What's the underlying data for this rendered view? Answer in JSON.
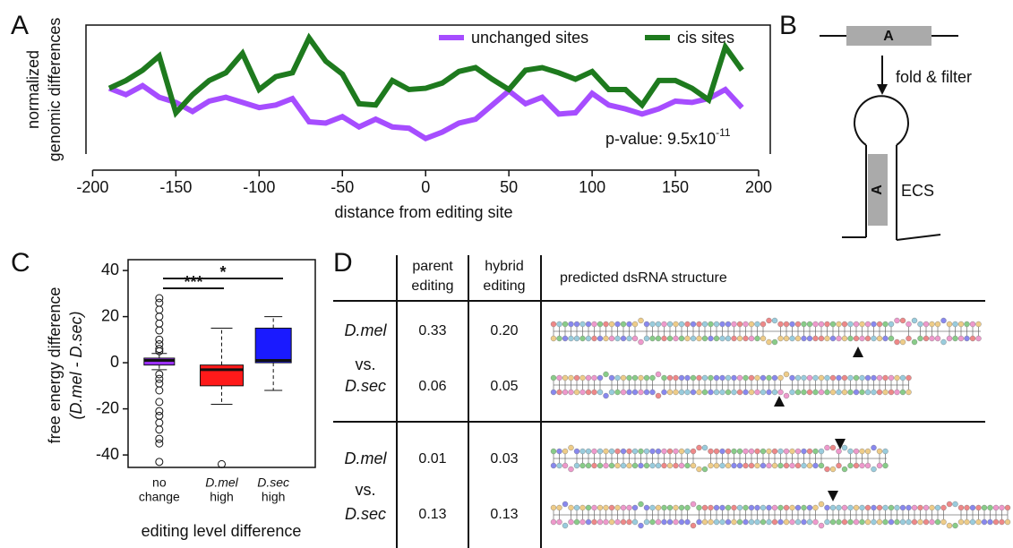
{
  "panel_labels": [
    "A",
    "B",
    "C",
    "D"
  ],
  "chart_data": [
    {
      "type": "line",
      "ylabel": [
        "normalized",
        "genomic differences"
      ],
      "xlabel": "distance from editing site",
      "x": [
        -190,
        -180,
        -170,
        -160,
        -150,
        -140,
        -130,
        -120,
        -110,
        -100,
        -90,
        -80,
        -70,
        -60,
        -50,
        -40,
        -30,
        -20,
        -10,
        0,
        10,
        20,
        30,
        40,
        50,
        60,
        70,
        80,
        90,
        100,
        110,
        120,
        130,
        140,
        150,
        160,
        170,
        180,
        190
      ],
      "series": [
        {
          "name": "unchanged sites",
          "color": "#a64dff",
          "values": [
            51,
            46,
            53,
            44,
            40,
            33,
            41,
            44,
            40,
            36,
            38,
            43,
            25,
            24,
            29,
            21,
            27,
            21,
            20,
            12,
            17,
            24,
            27,
            38,
            49,
            39,
            44,
            31,
            32,
            47,
            38,
            35,
            31,
            35,
            41,
            40,
            43,
            50,
            36
          ]
        },
        {
          "name": "cis sites",
          "color": "#1e7a1e",
          "values": [
            51,
            57,
            65,
            76,
            32,
            46,
            57,
            63,
            78,
            50,
            60,
            63,
            90,
            72,
            62,
            39,
            38,
            57,
            50,
            51,
            55,
            64,
            67,
            58,
            50,
            65,
            67,
            63,
            58,
            64,
            50,
            50,
            38,
            57,
            57,
            51,
            42,
            83,
            65
          ]
        }
      ],
      "xlim": [
        -204,
        207
      ],
      "ylim": [
        0,
        100
      ],
      "xticks": [
        -200,
        -150,
        -100,
        -50,
        0,
        50,
        100,
        150,
        200
      ],
      "legend": "upper right",
      "annotation": {
        "base": "p-value: 9.5x10",
        "exponent": "-11"
      }
    },
    {
      "type": "box",
      "ylabel": [
        "free energy difference",
        "(D.mel - D.sec)"
      ],
      "xlabel": "editing level difference",
      "categories": [
        [
          "no",
          "change"
        ],
        [
          "D.mel",
          "high"
        ],
        [
          "D.sec",
          "high"
        ]
      ],
      "boxes": [
        {
          "color": "#9b30ff",
          "whisker_low": -3,
          "q1": -1,
          "median": 1,
          "q3": 2,
          "whisker_high": 4,
          "outliers": [
            28,
            26,
            23,
            20,
            17,
            14,
            10,
            8,
            6,
            5,
            -5,
            -7,
            -9,
            -12,
            -17,
            -21,
            -23,
            -26,
            -29,
            -33,
            -35,
            -43
          ]
        },
        {
          "color": "#ff1a1a",
          "whisker_low": -18,
          "q1": -10,
          "median": -3,
          "q3": -1,
          "whisker_high": 15,
          "outliers": [
            -44
          ]
        },
        {
          "color": "#1a1aff",
          "whisker_low": -12,
          "q1": 0,
          "median": 1,
          "q3": 15,
          "whisker_high": 20,
          "outliers": []
        }
      ],
      "ylim": [
        -45.4,
        44.7
      ],
      "yticks": [
        -40,
        -20,
        0,
        20,
        40
      ],
      "significance": [
        "***",
        "*"
      ]
    }
  ],
  "diagram": {
    "segment": "A",
    "step": "fold & filter",
    "hairpin_segment": "A",
    "hairpin_label": "ECS"
  },
  "table": {
    "header": [
      [
        "parent",
        "editing"
      ],
      [
        "hybrid",
        "editing"
      ],
      [
        "predicted dsRNA structure"
      ]
    ],
    "groups": [
      {
        "species": [
          "D.mel",
          "vs.",
          "D.sec"
        ],
        "rows": [
          [
            "0.33",
            "0.20"
          ],
          [
            "0.06",
            "0.05"
          ]
        ]
      },
      {
        "species": [
          "D.mel",
          "vs.",
          "D.sec"
        ],
        "rows": [
          [
            "0.01",
            "0.03"
          ],
          [
            "0.13",
            "0.13"
          ]
        ]
      }
    ]
  }
}
